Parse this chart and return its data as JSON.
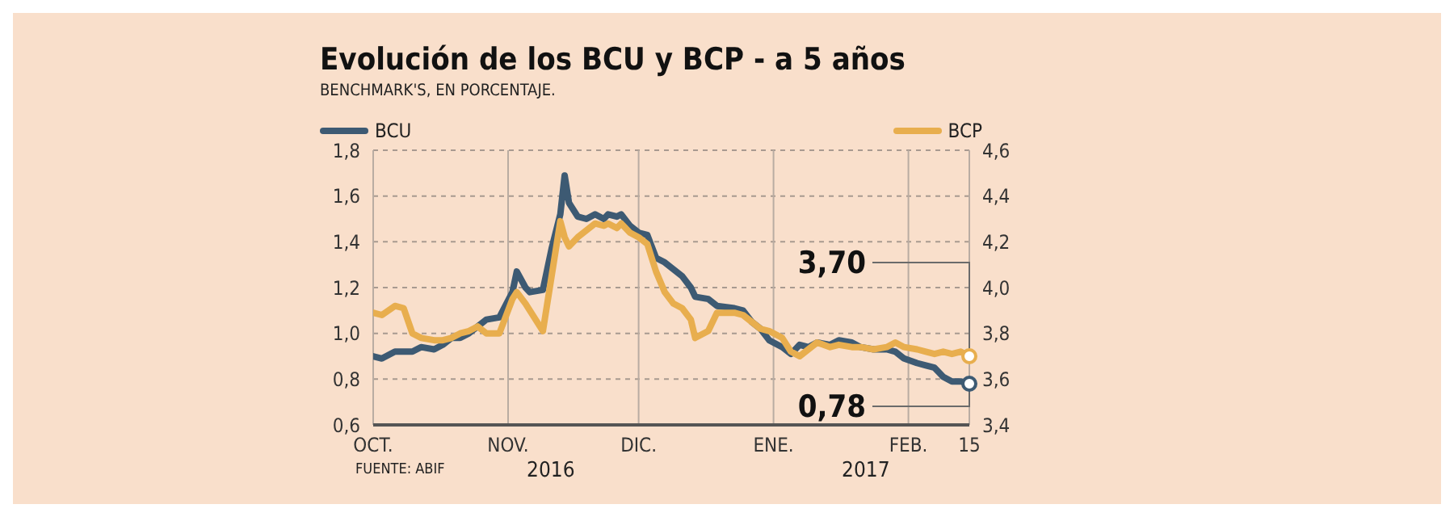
{
  "chart_data": {
    "type": "line",
    "title": "Evolución de los BCU y BCP - a 5 años",
    "subtitle": "BENCHMARK'S, EN PORCENTAJE.",
    "annotations": [
      "FUENTE: ABIF",
      "2016",
      "2017"
    ],
    "x": [
      "2016-10-01",
      "2016-10-03",
      "2016-10-06",
      "2016-10-08",
      "2016-10-10",
      "2016-10-12",
      "2016-10-15",
      "2016-10-17",
      "2016-10-19",
      "2016-10-21",
      "2016-10-23",
      "2016-10-25",
      "2016-10-27",
      "2016-10-30",
      "2016-11-02",
      "2016-11-03",
      "2016-11-05",
      "2016-11-06",
      "2016-11-09",
      "2016-11-11",
      "2016-11-13",
      "2016-11-14",
      "2016-11-15",
      "2016-11-17",
      "2016-11-19",
      "2016-11-21",
      "2016-11-23",
      "2016-11-24",
      "2016-11-26",
      "2016-11-27",
      "2016-11-29",
      "2016-12-01",
      "2016-12-03",
      "2016-12-05",
      "2016-12-07",
      "2016-12-09",
      "2016-12-11",
      "2016-12-13",
      "2016-12-14",
      "2016-12-17",
      "2016-12-19",
      "2016-12-23",
      "2016-12-25",
      "2016-12-27",
      "2016-12-29",
      "2016-12-31",
      "2017-01-03",
      "2017-01-05",
      "2017-01-07",
      "2017-01-09",
      "2017-01-11",
      "2017-01-14",
      "2017-01-16",
      "2017-01-19",
      "2017-01-21",
      "2017-01-24",
      "2017-01-27",
      "2017-01-29",
      "2017-01-31",
      "2017-02-03",
      "2017-02-05",
      "2017-02-07",
      "2017-02-09",
      "2017-02-11",
      "2017-02-13",
      "2017-02-15"
    ],
    "series": [
      {
        "name": "BCU",
        "color": "#3d5a73",
        "values": [
          0.9,
          0.89,
          0.92,
          0.92,
          0.92,
          0.94,
          0.93,
          0.95,
          0.98,
          0.98,
          1.0,
          1.03,
          1.06,
          1.07,
          1.18,
          1.27,
          1.2,
          1.18,
          1.19,
          1.37,
          1.52,
          1.69,
          1.57,
          1.51,
          1.5,
          1.52,
          1.5,
          1.52,
          1.51,
          1.52,
          1.47,
          1.44,
          1.43,
          1.33,
          1.31,
          1.28,
          1.25,
          1.2,
          1.16,
          1.15,
          1.12,
          1.11,
          1.1,
          1.05,
          1.02,
          0.97,
          0.94,
          0.91,
          0.95,
          0.94,
          0.96,
          0.95,
          0.97,
          0.96,
          0.94,
          0.93,
          0.93,
          0.92,
          0.89,
          0.87,
          0.86,
          0.85,
          0.81,
          0.79,
          0.79,
          0.78
        ],
        "value_labels": [
          null,
          null,
          null,
          null,
          null,
          null,
          null,
          null,
          null,
          null,
          null,
          null,
          null,
          null,
          null,
          null,
          null,
          null,
          null,
          null,
          null,
          null,
          null,
          null,
          null,
          null,
          null,
          null,
          null,
          null,
          null,
          null,
          null,
          null,
          null,
          null,
          null,
          null,
          null,
          null,
          null,
          null,
          null,
          null,
          null,
          null,
          null,
          null,
          null,
          null,
          null,
          null,
          null,
          null,
          null,
          null,
          null,
          null,
          null,
          null,
          null,
          null,
          null,
          null,
          null,
          "0,78"
        ]
      },
      {
        "name": "BCP",
        "color": "#e8ae4e",
        "axis": "y2",
        "values": [
          3.89,
          3.88,
          3.92,
          3.91,
          3.8,
          3.78,
          3.77,
          3.77,
          3.78,
          3.8,
          3.81,
          3.83,
          3.8,
          3.8,
          3.95,
          3.98,
          3.93,
          3.9,
          3.81,
          4.05,
          4.29,
          4.22,
          4.18,
          4.22,
          4.25,
          4.28,
          4.27,
          4.28,
          4.26,
          4.28,
          4.24,
          4.22,
          4.19,
          4.07,
          3.98,
          3.93,
          3.91,
          3.86,
          3.78,
          3.81,
          3.89,
          3.89,
          3.88,
          3.85,
          3.82,
          3.81,
          3.78,
          3.72,
          3.7,
          3.73,
          3.76,
          3.74,
          3.75,
          3.74,
          3.74,
          3.73,
          3.74,
          3.76,
          3.74,
          3.73,
          3.72,
          3.71,
          3.72,
          3.71,
          3.72,
          3.7
        ],
        "value_labels": [
          null,
          null,
          null,
          null,
          null,
          null,
          null,
          null,
          null,
          null,
          null,
          null,
          null,
          null,
          null,
          null,
          null,
          null,
          null,
          null,
          null,
          null,
          null,
          null,
          null,
          null,
          null,
          null,
          null,
          null,
          null,
          null,
          null,
          null,
          null,
          null,
          null,
          null,
          null,
          null,
          null,
          null,
          null,
          null,
          null,
          null,
          null,
          null,
          null,
          null,
          null,
          null,
          null,
          null,
          null,
          null,
          null,
          null,
          null,
          null,
          null,
          null,
          null,
          null,
          null,
          "3,70"
        ]
      }
    ],
    "xlim": [
      "2016-10-01",
      "2017-02-15"
    ],
    "xticks": [
      {
        "value": "2016-10-01",
        "label": "OCT."
      },
      {
        "value": "2016-11-01",
        "label": "NOV."
      },
      {
        "value": "2016-12-01",
        "label": "DIC."
      },
      {
        "value": "2017-01-01",
        "label": "ENE."
      },
      {
        "value": "2017-02-01",
        "label": "FEB."
      },
      {
        "value": "2017-02-15",
        "label": "15"
      }
    ],
    "ylim": [
      0.6,
      1.8
    ],
    "yticks": [
      {
        "value": 0.6,
        "label": "0,6"
      },
      {
        "value": 0.8,
        "label": "0,8"
      },
      {
        "value": 1.0,
        "label": "1,0"
      },
      {
        "value": 1.2,
        "label": "1,2"
      },
      {
        "value": 1.4,
        "label": "1,4"
      },
      {
        "value": 1.6,
        "label": "1,6"
      },
      {
        "value": 1.8,
        "label": "1,8"
      }
    ],
    "y2lim": [
      3.4,
      4.6
    ],
    "y2ticks": [
      {
        "value": 3.4,
        "label": "3,4"
      },
      {
        "value": 3.6,
        "label": "3,6"
      },
      {
        "value": 3.8,
        "label": "3,8"
      },
      {
        "value": 4.0,
        "label": "4,0"
      },
      {
        "value": 4.2,
        "label": "4,2"
      },
      {
        "value": 4.4,
        "label": "4,4"
      },
      {
        "value": 4.6,
        "label": "4,6"
      }
    ],
    "grid": true,
    "legend": "top",
    "line_style": "solid"
  }
}
